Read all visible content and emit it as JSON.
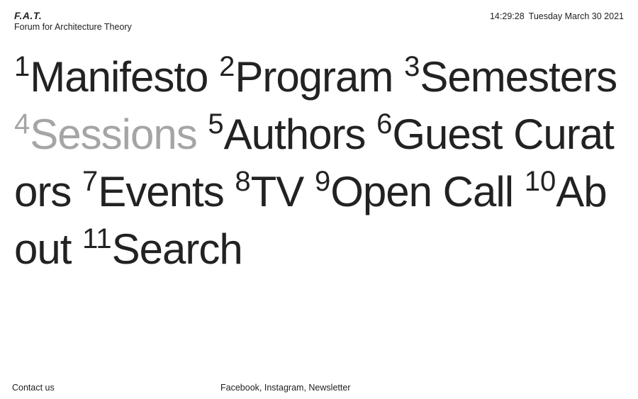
{
  "brand": {
    "logo": "F.A.T.",
    "subtitle": "Forum for Architecture Theory"
  },
  "clock": {
    "time": "14:29:28",
    "date": "Tuesday March 30 2021"
  },
  "nav": {
    "items": [
      {
        "num": "1",
        "label": "Manifesto"
      },
      {
        "num": "2",
        "label": "Program"
      },
      {
        "num": "3",
        "label": "Semesters"
      },
      {
        "num": "4",
        "label": "Sessions"
      },
      {
        "num": "5",
        "label": "Authors"
      },
      {
        "num": "6",
        "label": "Guest Curators"
      },
      {
        "num": "7",
        "label": "Events"
      },
      {
        "num": "8",
        "label": "TV"
      },
      {
        "num": "9",
        "label": "Open Call"
      },
      {
        "num": "10",
        "label": "About"
      },
      {
        "num": "11",
        "label": "Search"
      }
    ],
    "dimmed_index": 3,
    "dim_color": "#a5a5a5"
  },
  "footer": {
    "contact": "Contact us",
    "social": {
      "facebook": "Facebook",
      "sep1": ", ",
      "instagram": "Instagram",
      "sep2": ", ",
      "newsletter": "Newsletter"
    }
  },
  "colors": {
    "text": "#222222",
    "background": "#ffffff"
  }
}
